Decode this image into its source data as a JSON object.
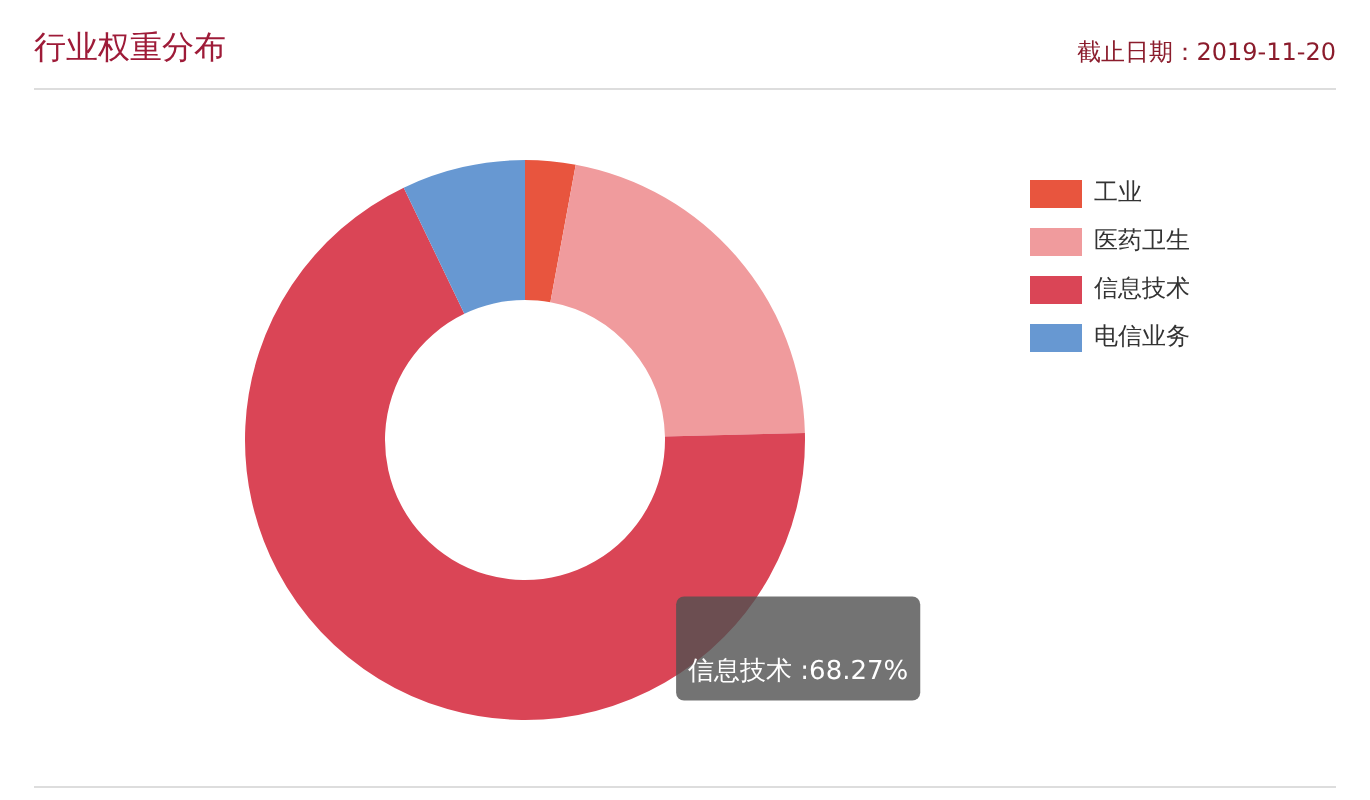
{
  "chart_data": {
    "type": "donut",
    "title": "行业权重分布",
    "annotations": [
      "截止日期：2019-11-20"
    ],
    "categories": [
      "工业",
      "医药卫生",
      "信息技术",
      "电信业务"
    ],
    "values": [
      2.9,
      21.7,
      68.27,
      7.13
    ],
    "colors": [
      "#e8553e",
      "#f09b9d",
      "#da4556",
      "#6798d2"
    ],
    "value_labels": [
      null,
      null,
      "信息技术 :68.27%",
      null
    ],
    "legend": "right"
  }
}
